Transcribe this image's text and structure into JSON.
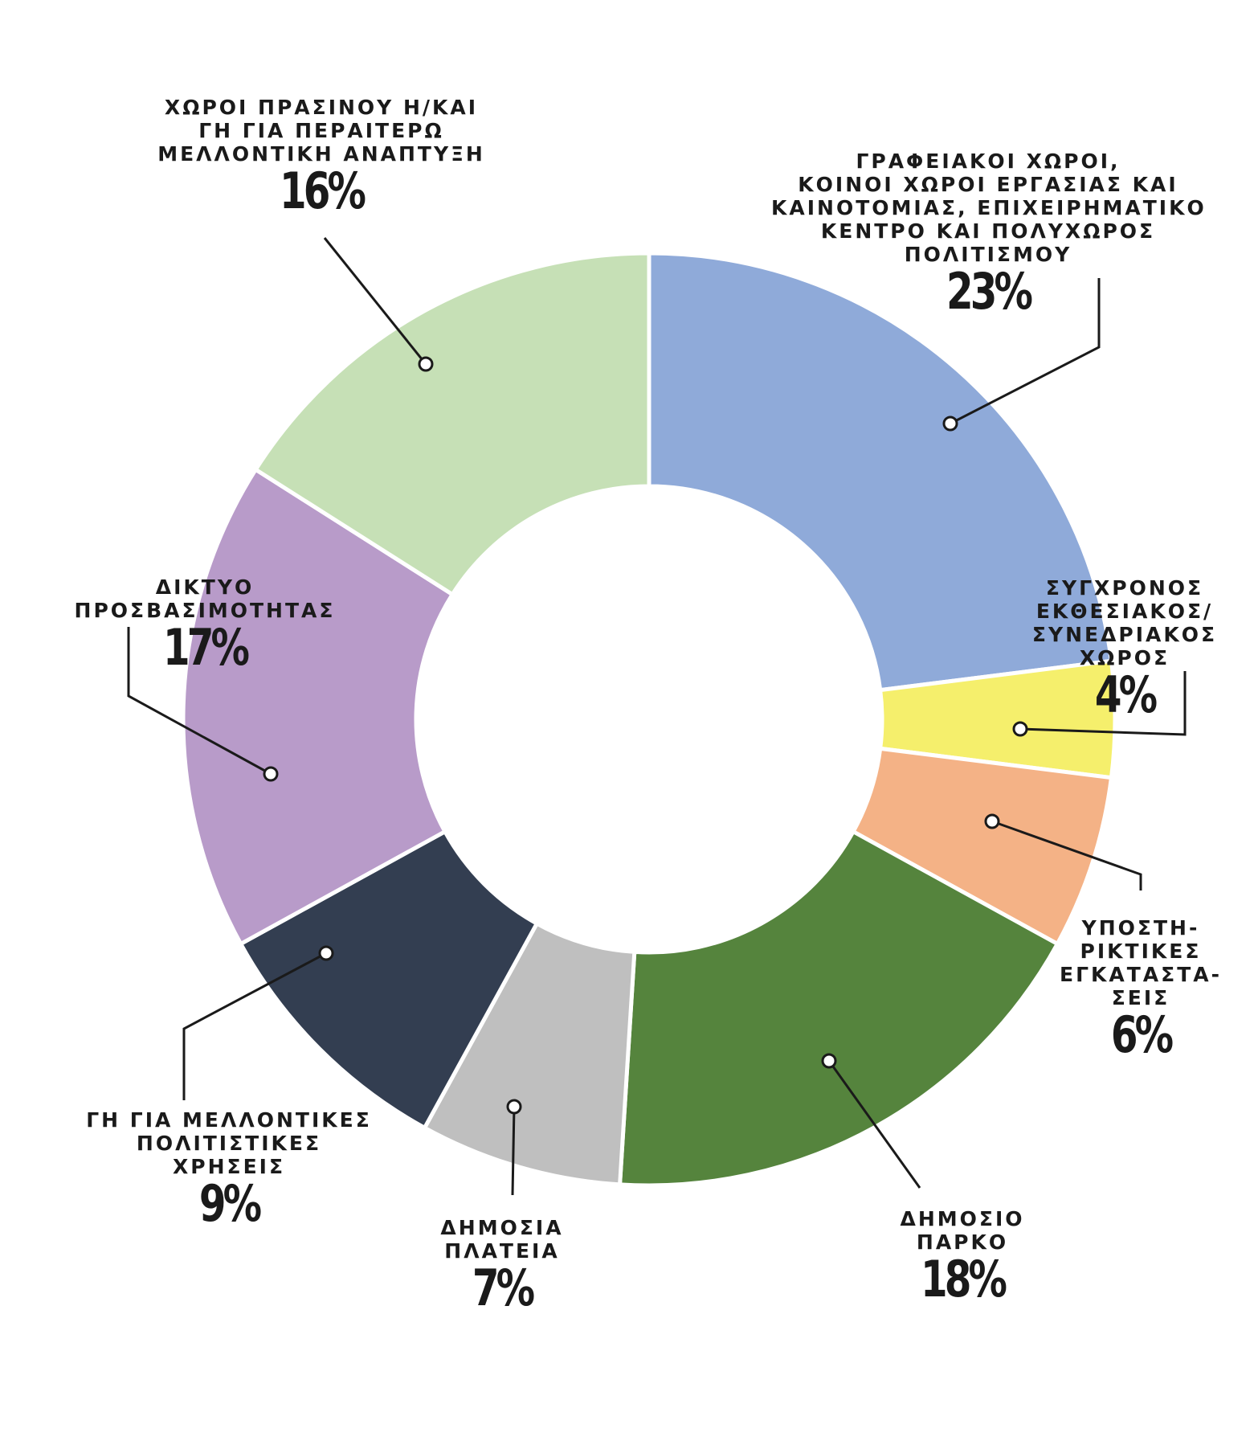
{
  "chart_data": {
    "type": "pie",
    "variant": "donut",
    "slices": [
      {
        "label": "ΓΡΑΦΕΙΑΚΟΙ ΧΩΡΟΙ,\nΚΟΙΝΟΙ ΧΩΡΟΙ ΕΡΓΑΣΙΑΣ ΚΑΙ\nΚΑΙΝΟΤΟΜΙΑΣ, ΕΠΙΧΕΙΡΗΜΑΤΙΚΟ\nΚΕΝΤΡΟ ΚΑΙ ΠΟΛΥΧΩΡΟΣ\nΠΟΛΙΤΙΣΜΟΥ",
        "value": 23,
        "value_label": "23%",
        "color": "#8faad9"
      },
      {
        "label": "ΣΥΓΧΡΟΝΟΣ\nΕΚΘΕΣΙΑΚΟΣ/\nΣΥΝΕΔΡΙΑΚΟΣ\nΧΩΡΟΣ",
        "value": 4,
        "value_label": "4%",
        "color": "#f5ef6c"
      },
      {
        "label": "ΥΠΟΣΤΗ-\nΡΙΚΤΙΚΕΣ\nΕΓΚΑΤΑΣΤΑ-\nΣΕΙΣ",
        "value": 6,
        "value_label": "6%",
        "color": "#f4b286"
      },
      {
        "label": "ΔΗΜΟΣΙΟ\nΠΑΡΚΟ",
        "value": 18,
        "value_label": "18%",
        "color": "#55843d"
      },
      {
        "label": "ΔΗΜΟΣΙΑ\nΠΛΑΤΕΙΑ",
        "value": 7,
        "value_label": "7%",
        "color": "#bfbfbf"
      },
      {
        "label": "ΓΗ ΓΙΑ ΜΕΛΛΟΝΤΙΚΕΣ\nΠΟΛΙΤΙΣΤΙΚΕΣ\nΧΡΗΣΕΙΣ",
        "value": 9,
        "value_label": "9%",
        "color": "#333e51"
      },
      {
        "label": "ΔΙΚΤΥΟ\nΠΡΟΣΒΑΣΙΜΟΤΗΤΑΣ",
        "value": 17,
        "value_label": "17%",
        "color": "#b89bc9"
      },
      {
        "label": "ΧΩΡΟΙ ΠΡΑΣΙΝΟΥ Η/ΚΑΙ\nΓΗ ΓΙΑ ΠΕΡΑΙΤΕΡΩ\nΜΕΛΛΟΝΤΙΚΗ ΑΝΑΠΤΥΞΗ",
        "value": 16,
        "value_label": "16%",
        "color": "#c6e0b6"
      }
    ],
    "title": "",
    "legend": "none"
  }
}
